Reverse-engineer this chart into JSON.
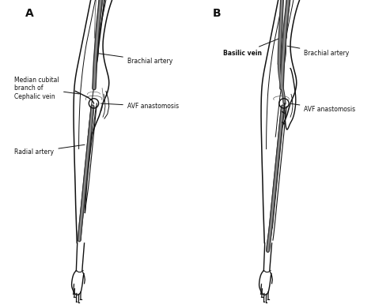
{
  "bg_color": "#ffffff",
  "line_color": "#111111",
  "dark_gray": "#333333",
  "med_gray": "#888888",
  "light_gray": "#cccccc",
  "label_A": "A",
  "label_B": "B",
  "panel_A_labels": {
    "brachial_artery": "Brachial artery",
    "avf_anastomosis": "AVF anastomosis",
    "median_cubital": "Median cubital\nbranch of\nCephalic vein",
    "radial_artery": "Radial artery"
  },
  "panel_B_labels": {
    "basilic_vein": "Basilic vein",
    "brachial_artery": "Brachial artery",
    "avf_anastomosis": "AVF anastomosis"
  },
  "fontsize": 5.5,
  "panel_label_fontsize": 10
}
